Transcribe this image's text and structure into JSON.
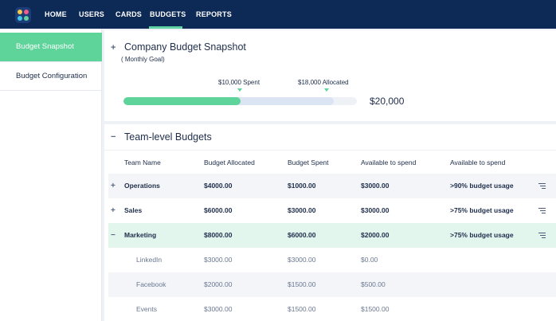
{
  "nav": {
    "items": [
      {
        "label": "HOME",
        "active": false
      },
      {
        "label": "USERS",
        "active": false
      },
      {
        "label": "CARDS",
        "active": false
      },
      {
        "label": "BUDGETS",
        "active": true
      },
      {
        "label": "REPORTS",
        "active": false
      }
    ],
    "logo_icon": "app-logo-icon",
    "accent_color": "#5ed39a"
  },
  "sidebar": {
    "items": [
      {
        "label": "Budget Snapshot",
        "active": true
      },
      {
        "label": "Budget Configuration",
        "active": false
      }
    ]
  },
  "snapshot": {
    "toggle": "+",
    "title": "Company Budget Snapshot",
    "subtitle": "( Monthly Goal)",
    "spent_label": "$10,000 Spent",
    "allocated_label": "$18,000 Allocated",
    "total_label": "$20,000",
    "spent_fraction": 0.5,
    "allocated_fraction": 0.9
  },
  "team_budgets": {
    "toggle": "−",
    "title": "Team-level Budgets",
    "headers": [
      "Team Name",
      "Budget Allocated",
      "Budget Spent",
      "Available to spend",
      "Available to spend"
    ],
    "rows": [
      {
        "toggle": "+",
        "name": "Operations",
        "allocated": "$4000.00",
        "spent": "$1000.00",
        "available": "$3000.00",
        "usage": ">90% budget usage",
        "level": "team",
        "expanded": false
      },
      {
        "toggle": "+",
        "name": "Sales",
        "allocated": "$6000.00",
        "spent": "$3000.00",
        "available": "$3000.00",
        "usage": ">75% budget usage",
        "level": "team",
        "expanded": false
      },
      {
        "toggle": "−",
        "name": "Marketing",
        "allocated": "$8000.00",
        "spent": "$6000.00",
        "available": "$2000.00",
        "usage": ">75% budget usage",
        "level": "team",
        "expanded": true
      },
      {
        "name": "LinkedIn",
        "allocated": "$3000.00",
        "spent": "$3000.00",
        "available": "$0.00",
        "level": "sub"
      },
      {
        "name": "Facebook",
        "allocated": "$2000.00",
        "spent": "$1500.00",
        "available": "$500.00",
        "level": "sub"
      },
      {
        "name": "Events",
        "allocated": "$3000.00",
        "spent": "$1500.00",
        "available": "$1500.00",
        "level": "sub"
      }
    ]
  }
}
